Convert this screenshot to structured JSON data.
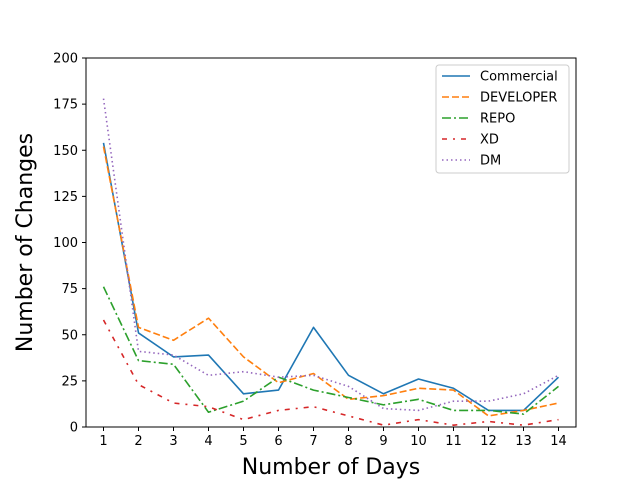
{
  "chart_data": {
    "type": "line",
    "title": "",
    "xlabel": "Number of Days",
    "ylabel": "Number of Changes",
    "x": [
      1,
      2,
      3,
      4,
      5,
      6,
      7,
      8,
      9,
      10,
      11,
      12,
      13,
      14
    ],
    "xlim": [
      0.5,
      14.5
    ],
    "ylim": [
      0,
      200
    ],
    "yticks": [
      0,
      25,
      50,
      75,
      100,
      125,
      150,
      175,
      200
    ],
    "grid": false,
    "legend_position": "top-right",
    "series": [
      {
        "name": "Commercial",
        "color": "#1f77b4",
        "style": "solid",
        "values": [
          154,
          51,
          38,
          39,
          18,
          20,
          54,
          28,
          18,
          26,
          21,
          9,
          9,
          27
        ]
      },
      {
        "name": "DEVELOPER",
        "color": "#ff7f0e",
        "style": "dashed",
        "values": [
          152,
          54,
          47,
          59,
          38,
          24,
          29,
          15,
          17,
          21,
          20,
          6,
          9,
          13
        ]
      },
      {
        "name": "REPO",
        "color": "#2ca02c",
        "style": "dashdot",
        "values": [
          76,
          36,
          34,
          8,
          14,
          27,
          20,
          16,
          12,
          15,
          9,
          9,
          7,
          22
        ]
      },
      {
        "name": "XD",
        "color": "#d62728",
        "style": "densedashdot",
        "values": [
          58,
          23,
          13,
          11,
          4,
          9,
          11,
          6,
          1,
          4,
          1,
          3,
          1,
          4
        ]
      },
      {
        "name": "DM",
        "color": "#9467bd",
        "style": "dotted",
        "values": [
          178,
          41,
          39,
          28,
          30,
          27,
          28,
          22,
          10,
          9,
          14,
          14,
          18,
          28
        ]
      }
    ]
  }
}
